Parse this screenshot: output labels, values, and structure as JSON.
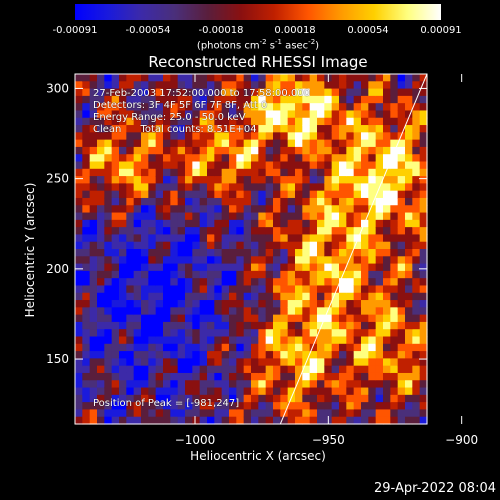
{
  "colorbar": {
    "ticks": [
      "-0.00091",
      "-0.00054",
      "-0.00018",
      "0.00018",
      "0.00054",
      "0.00091"
    ],
    "unit_main": "(photons cm",
    "unit_sup1": "-2",
    "unit_mid": " s",
    "unit_sup2": "-1",
    "unit_mid2": " asec",
    "unit_sup3": "-2",
    "unit_end": ")"
  },
  "info": {
    "line1": "27-Feb-2003 17:52:00.000 to 17:58:00.000",
    "line2": "Detectors: 3F 4F 5F 6F 7F 8F, Att 0",
    "line3": "Energy Range: 25.0 - 50.0 keV",
    "line4": "Clean      Total counts: 8.51E+04",
    "peak": "Position of Peak = [-981,247]"
  },
  "footer": "29-Apr-2022 08:04",
  "chart_data": {
    "type": "heatmap",
    "title": "Reconstructed RHESSI Image",
    "xlabel": "Heliocentric X (arcsec)",
    "ylabel": "Heliocentric Y (arcsec)",
    "xlim": [
      -1045,
      -913
    ],
    "ylim": [
      114,
      308
    ],
    "xticks": [
      -1000,
      -950,
      -900
    ],
    "yticks": [
      150,
      200,
      250,
      300
    ],
    "xtick_labels": [
      "−1000",
      "−950",
      "−900"
    ],
    "ytick_labels": [
      "150",
      "200",
      "250",
      "300"
    ],
    "colorscale": [
      "#0000ff",
      "#1a1adc",
      "#3c2aa8",
      "#4a2f7a",
      "#5a1e3c",
      "#8a1010",
      "#c02000",
      "#ff5500",
      "#ff9a00",
      "#ffd000",
      "#ffff80",
      "#ffffff"
    ],
    "value_range": [
      -0.00091,
      0.00091
    ],
    "limb_line": {
      "x": [
        -968,
        -913
      ],
      "y": [
        114,
        308
      ],
      "color": "#ffffff"
    }
  }
}
